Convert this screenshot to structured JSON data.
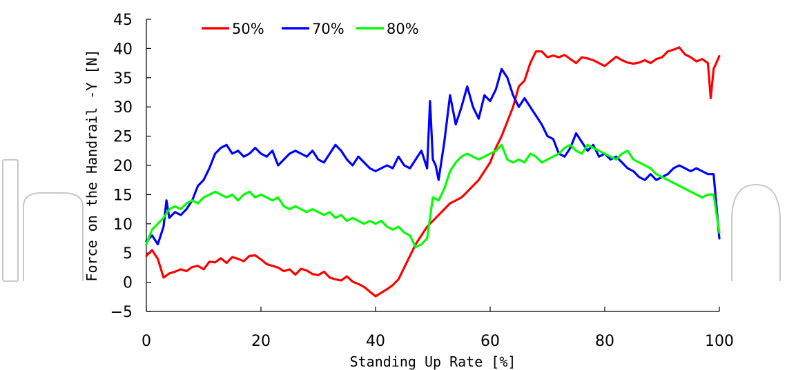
{
  "chart_data": {
    "type": "line",
    "xlabel": "Standing Up Rate [%]",
    "ylabel": "Force on the Handrail -Y [N]",
    "xlim": [
      0,
      100
    ],
    "ylim": [
      -5,
      45
    ],
    "xticks": [
      0,
      20,
      40,
      60,
      80,
      100
    ],
    "yticks": [
      -5,
      0,
      5,
      10,
      15,
      20,
      25,
      30,
      35,
      40,
      45
    ],
    "xtick_labels": [
      "0",
      "20",
      "40",
      "60",
      "80",
      "100"
    ],
    "ytick_labels": [
      "−5",
      "0",
      "5",
      "10",
      "15",
      "20",
      "25",
      "30",
      "35",
      "40",
      "45"
    ],
    "grid": false,
    "legend_position": "top-left",
    "series": [
      {
        "name": "50%",
        "color": "#ff0000",
        "x": [
          0,
          1,
          2,
          3,
          4,
          5,
          6,
          7,
          8,
          9,
          10,
          11,
          12,
          13,
          14,
          15,
          16,
          17,
          18,
          19,
          20,
          21,
          22,
          23,
          24,
          25,
          26,
          27,
          28,
          29,
          30,
          31,
          32,
          33,
          34,
          35,
          36,
          37,
          38,
          39,
          40,
          41,
          42,
          43,
          44,
          45,
          46,
          47,
          48,
          49,
          50,
          51,
          52,
          53,
          54,
          55,
          56,
          57,
          58,
          59,
          60,
          61,
          62,
          63,
          64,
          65,
          66,
          67,
          68,
          69,
          70,
          71,
          72,
          73,
          74,
          75,
          76,
          77,
          78,
          79,
          80,
          81,
          82,
          83,
          84,
          85,
          86,
          87,
          88,
          89,
          90,
          91,
          92,
          93,
          94,
          95,
          96,
          97,
          98,
          98.5,
          99,
          100
        ],
        "values": [
          4.5,
          5.5,
          4.0,
          0.8,
          1.5,
          1.8,
          2.2,
          1.9,
          2.6,
          2.8,
          2.2,
          3.5,
          3.4,
          4.1,
          3.3,
          4.3,
          4.0,
          3.6,
          4.5,
          4.6,
          3.9,
          3.1,
          2.8,
          2.5,
          1.9,
          2.2,
          1.3,
          2.3,
          2.0,
          1.4,
          1.2,
          1.8,
          0.8,
          0.5,
          0.3,
          1.0,
          0.1,
          -0.3,
          -0.8,
          -1.6,
          -2.4,
          -1.8,
          -1.2,
          -0.5,
          0.5,
          2.5,
          4.5,
          6.5,
          8.0,
          9.5,
          10.5,
          11.5,
          12.5,
          13.5,
          14.0,
          14.5,
          15.5,
          16.5,
          17.5,
          19.0,
          20.5,
          23.0,
          25.0,
          27.5,
          30.0,
          33.5,
          34.5,
          37.5,
          39.5,
          39.5,
          38.5,
          38.8,
          38.5,
          38.9,
          38.2,
          37.5,
          38.5,
          38.3,
          38.0,
          37.5,
          37.0,
          37.8,
          38.6,
          38.0,
          37.6,
          37.4,
          37.6,
          38.0,
          37.5,
          38.2,
          38.5,
          39.5,
          39.8,
          40.2,
          39.0,
          38.5,
          37.8,
          38.2,
          37.5,
          31.5,
          36.5,
          38.7
        ]
      },
      {
        "name": "70%",
        "color": "#0000ff",
        "x": [
          0,
          1,
          2,
          3,
          3.5,
          4,
          5,
          6,
          7,
          8,
          9,
          10,
          11,
          12,
          13,
          14,
          15,
          16,
          17,
          18,
          19,
          20,
          21,
          22,
          23,
          24,
          25,
          26,
          27,
          28,
          29,
          30,
          31,
          32,
          33,
          34,
          35,
          36,
          37,
          38,
          39,
          40,
          41,
          42,
          43,
          44,
          45,
          46,
          47,
          48,
          49,
          49.5,
          50,
          50.5,
          51,
          52,
          53,
          54,
          55,
          56,
          57,
          58,
          59,
          60,
          61,
          62,
          63,
          64,
          65,
          66,
          67,
          68,
          69,
          70,
          71,
          72,
          73,
          74,
          75,
          76,
          77,
          78,
          79,
          80,
          81,
          82,
          83,
          84,
          85,
          86,
          87,
          88,
          89,
          90,
          91,
          92,
          93,
          94,
          95,
          96,
          97,
          98,
          99,
          100
        ],
        "values": [
          7.0,
          8.0,
          6.5,
          9.5,
          14.0,
          11.0,
          12.0,
          11.5,
          12.5,
          14.0,
          16.5,
          17.5,
          19.5,
          22.0,
          23.0,
          23.5,
          22.0,
          22.5,
          21.5,
          22.0,
          23.0,
          22.0,
          21.5,
          22.5,
          20.0,
          21.0,
          22.0,
          22.5,
          22.0,
          21.5,
          22.5,
          21.0,
          20.5,
          22.0,
          23.5,
          22.5,
          21.0,
          20.0,
          21.5,
          20.5,
          19.5,
          19.0,
          19.5,
          20.0,
          19.5,
          21.5,
          20.0,
          19.5,
          21.0,
          22.5,
          19.5,
          31.0,
          21.0,
          20.0,
          17.5,
          24.0,
          32.0,
          27.0,
          30.0,
          33.5,
          30.0,
          28.0,
          32.0,
          31.0,
          33.0,
          36.5,
          35.0,
          32.0,
          30.0,
          31.5,
          30.0,
          28.5,
          27.0,
          25.0,
          24.5,
          22.0,
          21.5,
          23.0,
          25.5,
          24.0,
          22.5,
          23.5,
          21.5,
          22.0,
          21.0,
          21.5,
          20.5,
          19.5,
          19.0,
          18.0,
          17.5,
          18.5,
          17.5,
          18.0,
          18.5,
          19.5,
          20.0,
          19.5,
          19.0,
          19.5,
          19.0,
          18.5,
          18.5,
          7.5
        ]
      },
      {
        "name": "80%",
        "color": "#00ff00",
        "x": [
          0,
          1,
          2,
          3,
          4,
          5,
          6,
          7,
          8,
          9,
          10,
          11,
          12,
          13,
          14,
          15,
          16,
          17,
          18,
          19,
          20,
          21,
          22,
          23,
          24,
          25,
          26,
          27,
          28,
          29,
          30,
          31,
          32,
          33,
          34,
          35,
          36,
          37,
          38,
          39,
          40,
          41,
          42,
          43,
          44,
          45,
          46,
          47,
          48,
          49,
          50,
          51,
          52,
          53,
          54,
          55,
          56,
          57,
          58,
          59,
          60,
          61,
          62,
          63,
          64,
          65,
          66,
          67,
          68,
          69,
          70,
          71,
          72,
          73,
          74,
          75,
          76,
          77,
          78,
          79,
          80,
          81,
          82,
          83,
          84,
          85,
          86,
          87,
          88,
          89,
          90,
          91,
          92,
          93,
          94,
          95,
          96,
          97,
          98,
          99,
          100
        ],
        "values": [
          6.5,
          9.0,
          10.0,
          11.0,
          12.5,
          13.0,
          12.5,
          13.5,
          14.0,
          13.5,
          14.5,
          15.0,
          15.5,
          15.0,
          14.5,
          15.0,
          14.0,
          15.0,
          15.5,
          14.5,
          15.0,
          14.5,
          14.0,
          14.5,
          13.0,
          12.5,
          13.0,
          12.5,
          12.0,
          12.5,
          12.0,
          11.5,
          12.0,
          11.0,
          11.5,
          10.5,
          11.0,
          10.5,
          10.0,
          10.5,
          10.0,
          10.5,
          9.5,
          9.0,
          9.5,
          8.5,
          8.0,
          6.0,
          6.5,
          7.5,
          14.5,
          14.0,
          16.0,
          19.0,
          20.5,
          21.5,
          22.0,
          21.5,
          21.0,
          21.5,
          22.0,
          22.5,
          23.5,
          21.0,
          20.5,
          21.0,
          20.5,
          22.0,
          21.5,
          20.5,
          21.0,
          21.5,
          22.0,
          23.0,
          23.5,
          22.5,
          22.0,
          23.5,
          23.0,
          22.5,
          22.0,
          21.5,
          21.0,
          22.0,
          22.5,
          21.0,
          20.5,
          20.0,
          19.5,
          18.5,
          18.0,
          17.5,
          17.0,
          16.5,
          16.0,
          15.5,
          15.0,
          14.5,
          15.0,
          15.0,
          8.5
        ]
      }
    ]
  }
}
